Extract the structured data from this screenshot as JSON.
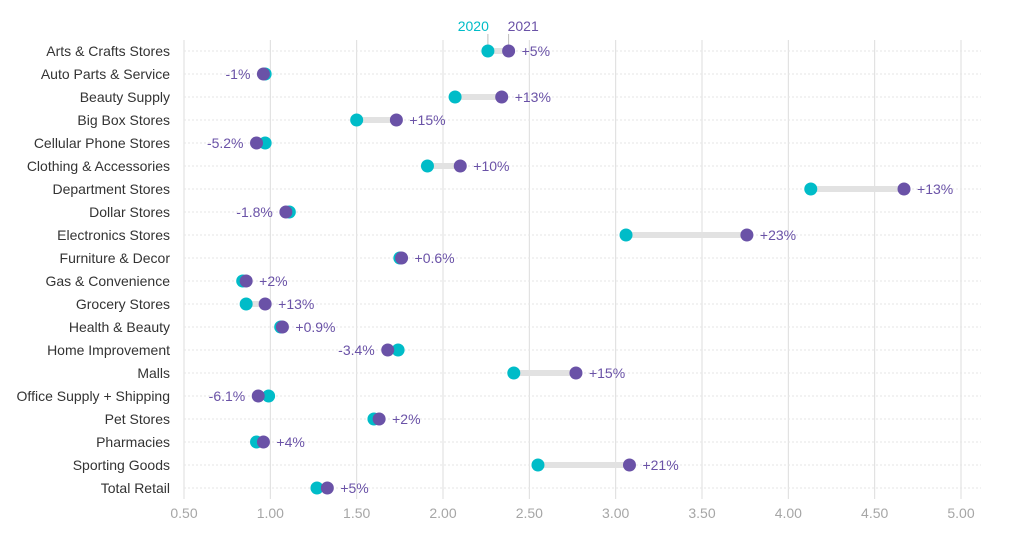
{
  "chart_data": {
    "type": "dumbbell",
    "series": [
      {
        "name": "2020",
        "color": "#00BCC8"
      },
      {
        "name": "2021",
        "color": "#6A52A7"
      }
    ],
    "connector_color": "#e2e2e2",
    "label_color": "#6A52A7",
    "xlim": [
      0.5,
      5.0
    ],
    "xticks": [
      "0.50",
      "1.00",
      "1.50",
      "2.00",
      "2.50",
      "3.00",
      "3.50",
      "4.00",
      "4.50",
      "5.00"
    ],
    "xtick_values": [
      0.5,
      1.0,
      1.5,
      2.0,
      2.5,
      3.0,
      3.5,
      4.0,
      4.5,
      5.0
    ],
    "grid": true,
    "legend_position": "top",
    "rows": [
      {
        "category": "Arts & Crafts Stores",
        "v2020": 2.26,
        "v2021": 2.38,
        "label": "+5%"
      },
      {
        "category": "Auto Parts & Service",
        "v2020": 0.97,
        "v2021": 0.96,
        "label": "-1%"
      },
      {
        "category": "Beauty Supply",
        "v2020": 2.07,
        "v2021": 2.34,
        "label": "+13%"
      },
      {
        "category": "Big Box Stores",
        "v2020": 1.5,
        "v2021": 1.73,
        "label": "+15%"
      },
      {
        "category": "Cellular Phone Stores",
        "v2020": 0.97,
        "v2021": 0.92,
        "label": "-5.2%"
      },
      {
        "category": "Clothing & Accessories",
        "v2020": 1.91,
        "v2021": 2.1,
        "label": "+10%"
      },
      {
        "category": "Department Stores",
        "v2020": 4.13,
        "v2021": 4.67,
        "label": "+13%"
      },
      {
        "category": "Dollar Stores",
        "v2020": 1.11,
        "v2021": 1.09,
        "label": "-1.8%"
      },
      {
        "category": "Electronics Stores",
        "v2020": 3.06,
        "v2021": 3.76,
        "label": "+23%"
      },
      {
        "category": "Furniture & Decor",
        "v2020": 1.75,
        "v2021": 1.76,
        "label": "+0.6%"
      },
      {
        "category": "Gas & Convenience",
        "v2020": 0.84,
        "v2021": 0.86,
        "label": "+2%"
      },
      {
        "category": "Grocery Stores",
        "v2020": 0.86,
        "v2021": 0.97,
        "label": "+13%"
      },
      {
        "category": "Health & Beauty",
        "v2020": 1.06,
        "v2021": 1.07,
        "label": "+0.9%"
      },
      {
        "category": "Home Improvement",
        "v2020": 1.74,
        "v2021": 1.68,
        "label": "-3.4%"
      },
      {
        "category": "Malls",
        "v2020": 2.41,
        "v2021": 2.77,
        "label": "+15%"
      },
      {
        "category": "Office Supply + Shipping",
        "v2020": 0.99,
        "v2021": 0.93,
        "label": "-6.1%"
      },
      {
        "category": "Pet Stores",
        "v2020": 1.6,
        "v2021": 1.63,
        "label": "+2%"
      },
      {
        "category": "Pharmacies",
        "v2020": 0.92,
        "v2021": 0.96,
        "label": "+4%"
      },
      {
        "category": "Sporting Goods",
        "v2020": 2.55,
        "v2021": 3.08,
        "label": "+21%"
      },
      {
        "category": "Total Retail",
        "v2020": 1.27,
        "v2021": 1.33,
        "label": "+5%"
      }
    ]
  }
}
